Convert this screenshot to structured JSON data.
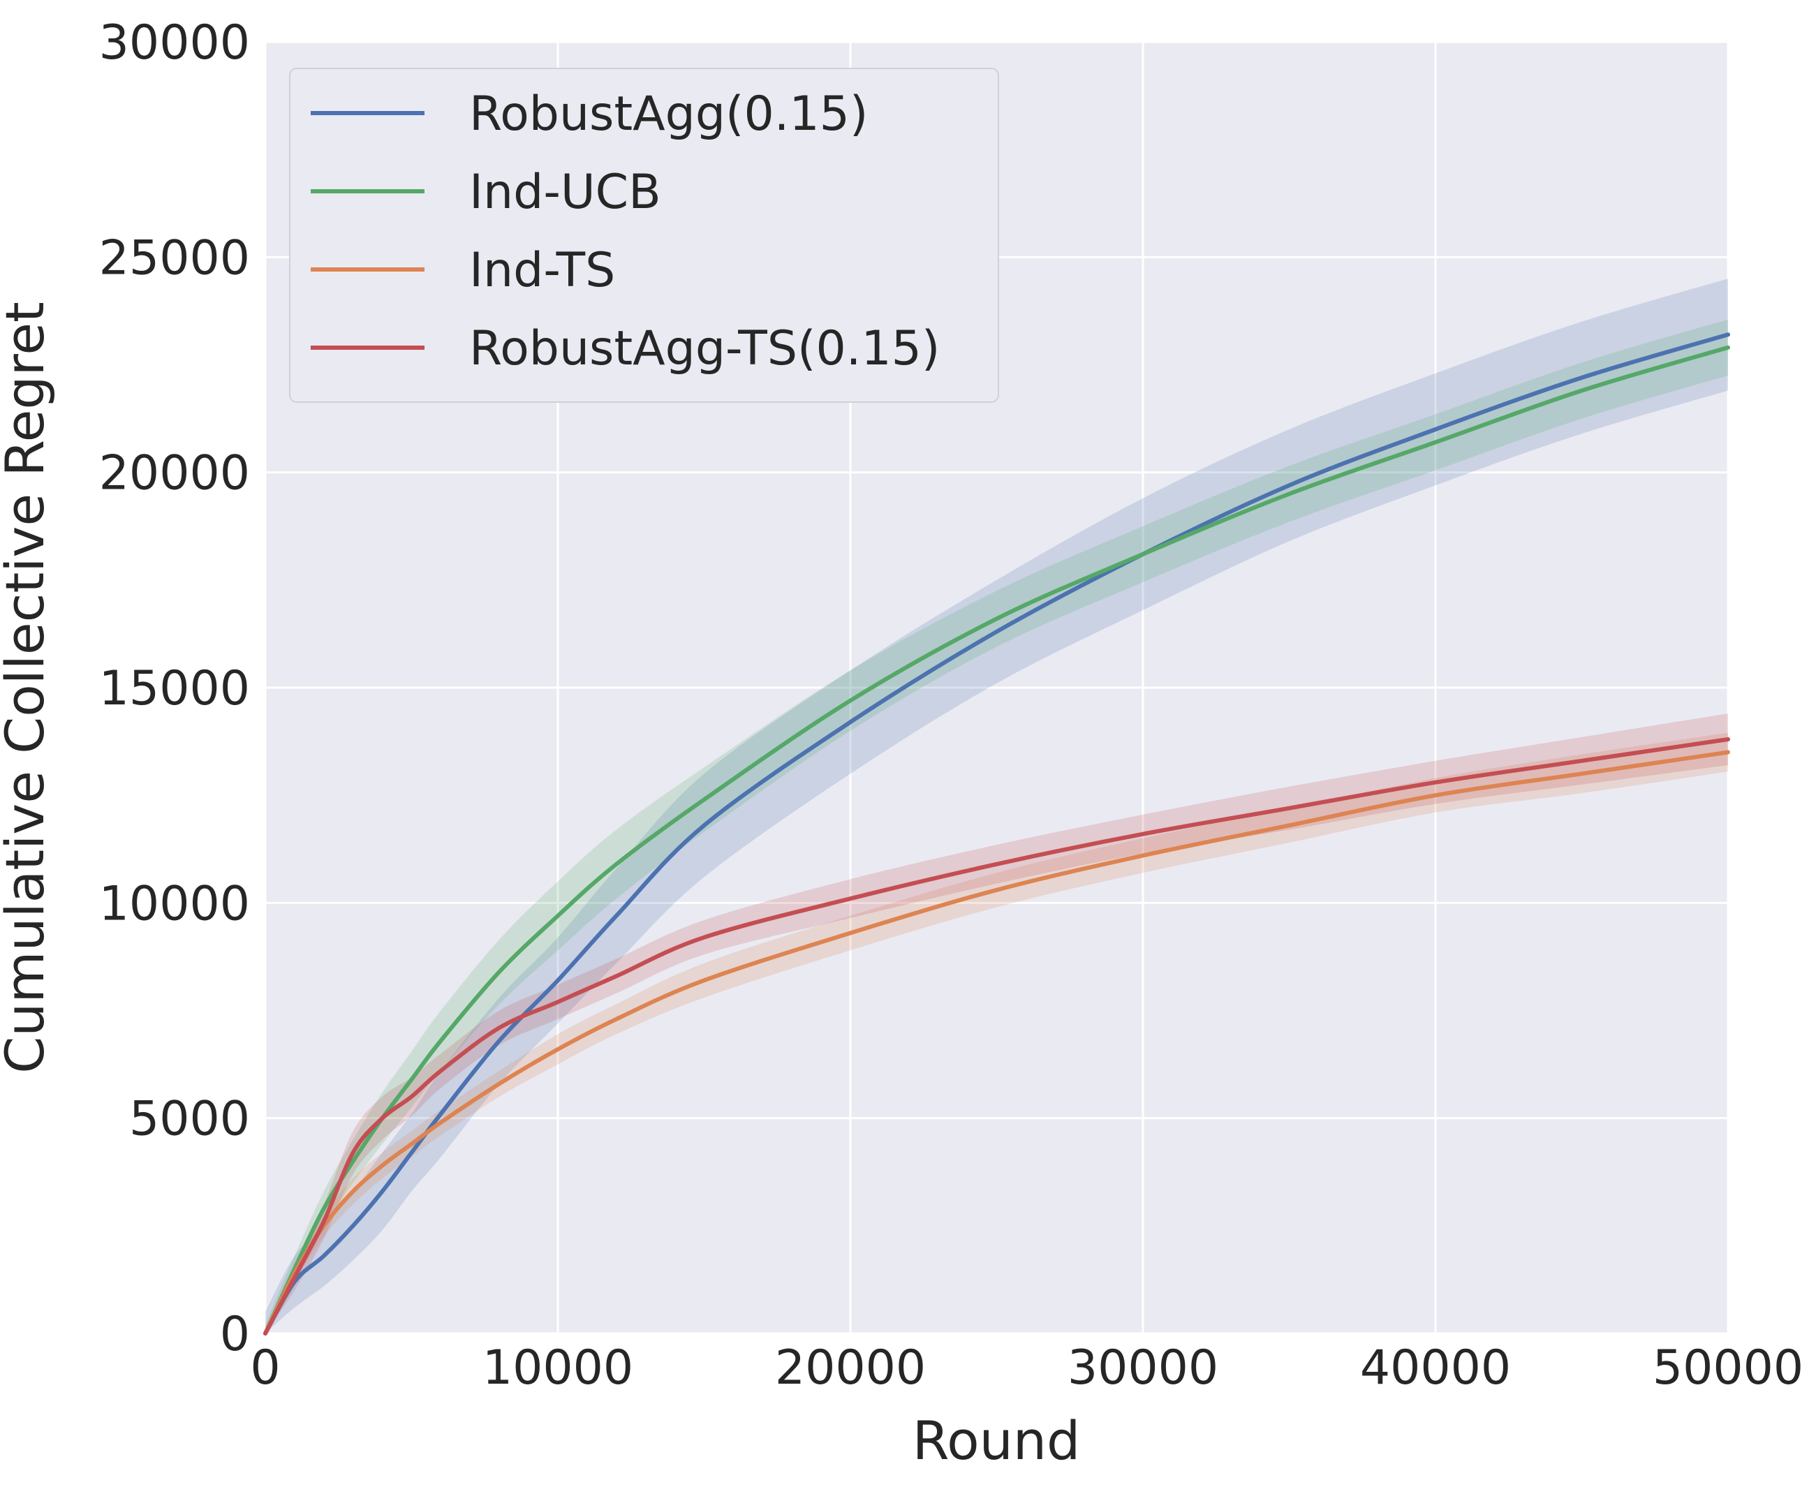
{
  "chart_data": {
    "type": "line",
    "title": "",
    "xlabel": "Round",
    "ylabel": "Cumulative Collective Regret",
    "xlim": [
      0,
      50000
    ],
    "ylim": [
      0,
      30000
    ],
    "xticks": [
      "0",
      "10000",
      "20000",
      "30000",
      "40000",
      "50000"
    ],
    "yticks": [
      "0",
      "5000",
      "10000",
      "15000",
      "20000",
      "25000",
      "30000"
    ],
    "grid": true,
    "legend_position": "top-left",
    "background": "#eaeaf2",
    "x": [
      0,
      1000,
      2000,
      3000,
      4000,
      5000,
      6000,
      8000,
      10000,
      12000,
      15000,
      20000,
      25000,
      30000,
      35000,
      40000,
      45000,
      50000
    ],
    "series": [
      {
        "name": "RobustAgg(0.15)",
        "color": "#4c72b0",
        "values": [
          0,
          1200,
          1800,
          2500,
          3300,
          4200,
          5100,
          6800,
          8200,
          9700,
          11800,
          14200,
          16300,
          18100,
          19700,
          21000,
          22200,
          23200
        ],
        "band": [
          500,
          600,
          700,
          800,
          900,
          900,
          1000,
          1000,
          1000,
          1100,
          1200,
          1200,
          1200,
          1300,
          1300,
          1300,
          1300,
          1300
        ]
      },
      {
        "name": "Ind-UCB",
        "color": "#55a868",
        "values": [
          0,
          1500,
          2900,
          4000,
          5000,
          5900,
          6800,
          8400,
          9700,
          10900,
          12400,
          14700,
          16600,
          18100,
          19500,
          20700,
          21900,
          22900
        ],
        "band": [
          200,
          300,
          400,
          500,
          600,
          650,
          700,
          750,
          800,
          800,
          750,
          700,
          650,
          650,
          650,
          650,
          650,
          650
        ]
      },
      {
        "name": "Ind-TS",
        "color": "#dd8452",
        "values": [
          0,
          1400,
          2500,
          3300,
          3900,
          4400,
          4900,
          5800,
          6600,
          7300,
          8200,
          9300,
          10300,
          11100,
          11800,
          12500,
          13000,
          13500
        ],
        "band": [
          100,
          200,
          250,
          300,
          300,
          300,
          300,
          300,
          350,
          350,
          400,
          400,
          400,
          400,
          400,
          400,
          450,
          450
        ]
      },
      {
        "name": "RobustAgg-TS(0.15)",
        "color": "#c44e52",
        "values": [
          0,
          1300,
          2600,
          4200,
          5000,
          5500,
          6100,
          7100,
          7700,
          8300,
          9200,
          10100,
          10900,
          11600,
          12200,
          12800,
          13300,
          13800
        ],
        "band": [
          100,
          300,
          400,
          500,
          500,
          450,
          400,
          400,
          400,
          400,
          400,
          450,
          450,
          450,
          500,
          500,
          550,
          600
        ]
      }
    ]
  }
}
